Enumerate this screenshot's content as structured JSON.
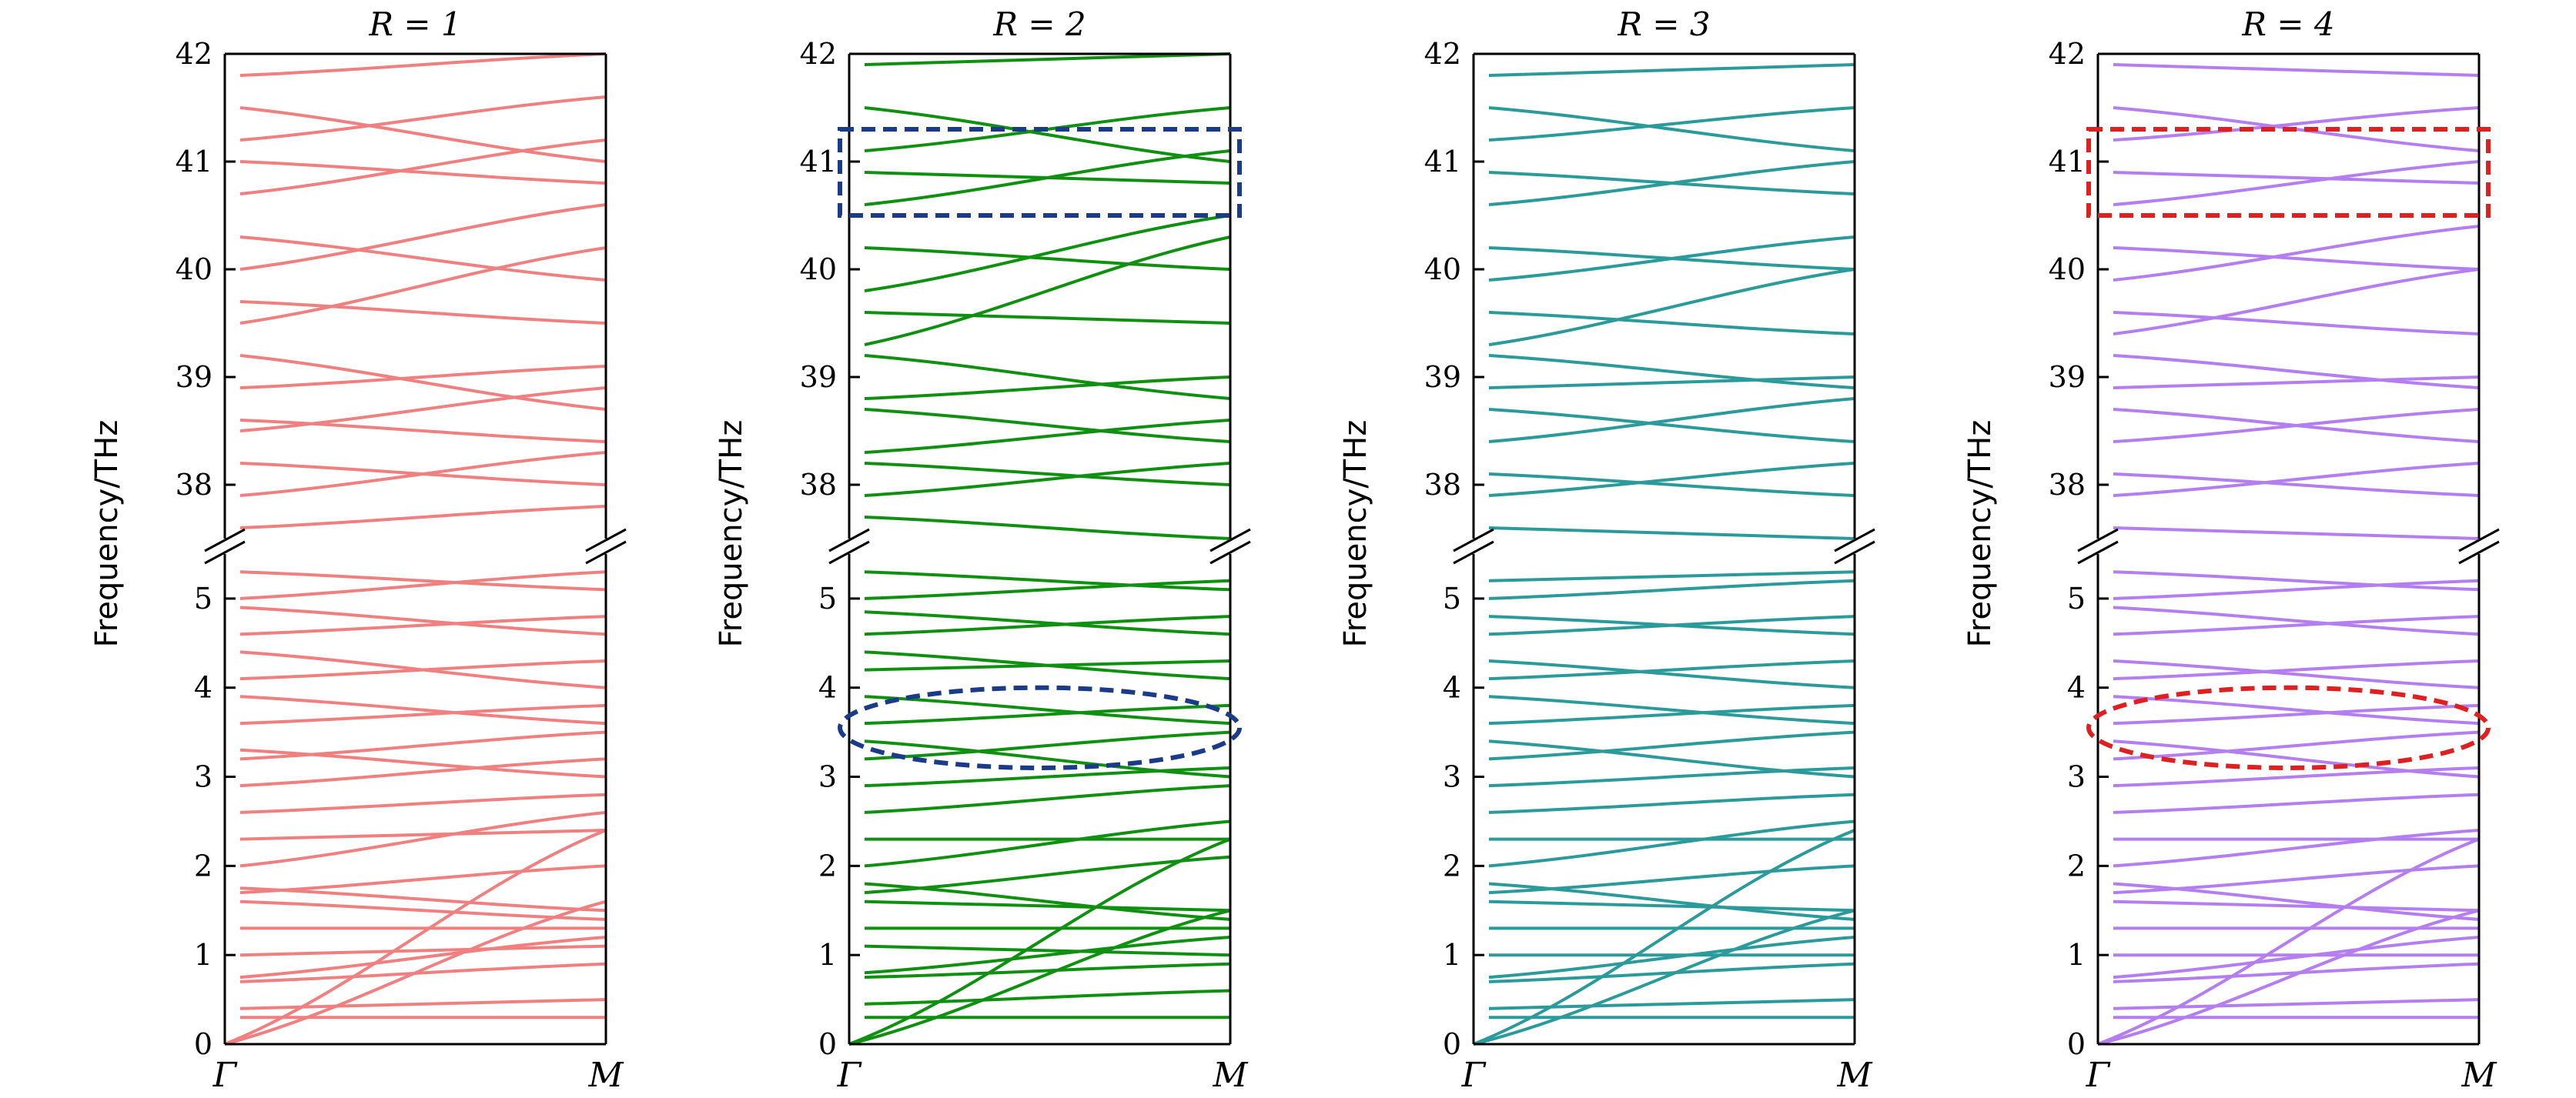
{
  "chart_data": [
    {
      "type": "line",
      "title": "R = 1",
      "ylabel": "Frequency/THz",
      "xticks": [
        "Γ",
        "M"
      ],
      "y_axis": "broken",
      "lower_range": [
        0,
        5.5
      ],
      "upper_range": [
        37.5,
        42
      ],
      "lower_ticks": [
        0,
        1,
        2,
        3,
        4,
        5
      ],
      "upper_ticks": [
        38,
        39,
        40,
        41,
        42
      ],
      "color": "#f08080",
      "series": [
        {
          "values": [
            0.0,
            1.6
          ]
        },
        {
          "values": [
            0.0,
            2.4
          ]
        },
        {
          "values": [
            0.3,
            0.3
          ]
        },
        {
          "values": [
            0.4,
            0.5
          ]
        },
        {
          "values": [
            0.7,
            0.9
          ]
        },
        {
          "values": [
            0.75,
            1.2
          ]
        },
        {
          "values": [
            1.0,
            1.1
          ]
        },
        {
          "values": [
            1.3,
            1.3
          ]
        },
        {
          "values": [
            1.6,
            1.4
          ]
        },
        {
          "values": [
            1.7,
            2.0
          ]
        },
        {
          "values": [
            1.75,
            1.5
          ]
        },
        {
          "values": [
            2.0,
            2.6
          ]
        },
        {
          "values": [
            2.3,
            2.4
          ]
        },
        {
          "values": [
            2.6,
            2.8
          ]
        },
        {
          "values": [
            2.9,
            3.2
          ]
        },
        {
          "values": [
            3.2,
            3.5
          ]
        },
        {
          "values": [
            3.3,
            3.0
          ]
        },
        {
          "values": [
            3.6,
            3.8
          ]
        },
        {
          "values": [
            3.9,
            3.6
          ]
        },
        {
          "values": [
            4.1,
            4.3
          ]
        },
        {
          "values": [
            4.4,
            4.0
          ]
        },
        {
          "values": [
            4.6,
            4.8
          ]
        },
        {
          "values": [
            4.9,
            4.6
          ]
        },
        {
          "values": [
            5.0,
            5.3
          ]
        },
        {
          "values": [
            5.3,
            5.1
          ]
        },
        {
          "values": [
            37.6,
            37.8
          ]
        },
        {
          "values": [
            37.9,
            38.3
          ]
        },
        {
          "values": [
            38.2,
            38.0
          ]
        },
        {
          "values": [
            38.5,
            38.9
          ]
        },
        {
          "values": [
            38.6,
            38.4
          ]
        },
        {
          "values": [
            38.9,
            39.1
          ]
        },
        {
          "values": [
            39.2,
            38.7
          ]
        },
        {
          "values": [
            39.5,
            40.2
          ]
        },
        {
          "values": [
            39.7,
            39.5
          ]
        },
        {
          "values": [
            40.0,
            40.6
          ]
        },
        {
          "values": [
            40.3,
            39.9
          ]
        },
        {
          "values": [
            40.7,
            41.2
          ]
        },
        {
          "values": [
            41.0,
            40.8
          ]
        },
        {
          "values": [
            41.2,
            41.6
          ]
        },
        {
          "values": [
            41.5,
            41.0
          ]
        },
        {
          "values": [
            41.8,
            42.0
          ]
        }
      ]
    },
    {
      "type": "line",
      "title": "R = 2",
      "ylabel": "Frequency/THz",
      "xticks": [
        "Γ",
        "M"
      ],
      "y_axis": "broken",
      "lower_range": [
        0,
        5.5
      ],
      "upper_range": [
        37.5,
        42
      ],
      "lower_ticks": [
        0,
        1,
        2,
        3,
        4,
        5
      ],
      "upper_ticks": [
        38,
        39,
        40,
        41,
        42
      ],
      "color": "#109010",
      "series": [
        {
          "values": [
            0.0,
            1.5
          ]
        },
        {
          "values": [
            0.0,
            2.3
          ]
        },
        {
          "values": [
            0.3,
            0.3
          ]
        },
        {
          "values": [
            0.45,
            0.6
          ]
        },
        {
          "values": [
            0.75,
            0.9
          ]
        },
        {
          "values": [
            0.8,
            1.2
          ]
        },
        {
          "values": [
            1.1,
            1.0
          ]
        },
        {
          "values": [
            1.3,
            1.3
          ]
        },
        {
          "values": [
            1.6,
            1.5
          ]
        },
        {
          "values": [
            1.7,
            2.1
          ]
        },
        {
          "values": [
            1.8,
            1.4
          ]
        },
        {
          "values": [
            2.0,
            2.5
          ]
        },
        {
          "values": [
            2.3,
            2.3
          ]
        },
        {
          "values": [
            2.6,
            2.9
          ]
        },
        {
          "values": [
            2.9,
            3.1
          ]
        },
        {
          "values": [
            3.2,
            3.5
          ]
        },
        {
          "values": [
            3.4,
            3.0
          ]
        },
        {
          "values": [
            3.6,
            3.8
          ]
        },
        {
          "values": [
            3.9,
            3.6
          ]
        },
        {
          "values": [
            4.2,
            4.3
          ]
        },
        {
          "values": [
            4.4,
            4.1
          ]
        },
        {
          "values": [
            4.6,
            4.8
          ]
        },
        {
          "values": [
            4.85,
            4.6
          ]
        },
        {
          "values": [
            5.0,
            5.2
          ]
        },
        {
          "values": [
            5.3,
            5.1
          ]
        },
        {
          "values": [
            37.7,
            37.5
          ]
        },
        {
          "values": [
            37.9,
            38.2
          ]
        },
        {
          "values": [
            38.2,
            38.0
          ]
        },
        {
          "values": [
            38.3,
            38.6
          ]
        },
        {
          "values": [
            38.7,
            38.4
          ]
        },
        {
          "values": [
            38.8,
            39.0
          ]
        },
        {
          "values": [
            39.2,
            38.8
          ]
        },
        {
          "values": [
            39.3,
            40.3
          ]
        },
        {
          "values": [
            39.6,
            39.5
          ]
        },
        {
          "values": [
            39.8,
            40.5
          ]
        },
        {
          "values": [
            40.2,
            40.0
          ]
        },
        {
          "values": [
            40.6,
            41.1
          ]
        },
        {
          "values": [
            40.9,
            40.8
          ]
        },
        {
          "values": [
            41.1,
            41.5
          ]
        },
        {
          "values": [
            41.5,
            41.0
          ]
        },
        {
          "values": [
            41.9,
            42.0
          ]
        }
      ],
      "annotations": [
        "dashed rectangle near 41 THz",
        "dashed ellipse near 3.5 THz"
      ],
      "annotation_color": "#1a3a8a"
    },
    {
      "type": "line",
      "title": "R = 3",
      "ylabel": "Frequency/THz",
      "xticks": [
        "Γ",
        "M"
      ],
      "y_axis": "broken",
      "lower_range": [
        0,
        5.5
      ],
      "upper_range": [
        37.5,
        42
      ],
      "lower_ticks": [
        0,
        1,
        2,
        3,
        4,
        5
      ],
      "upper_ticks": [
        38,
        39,
        40,
        41,
        42
      ],
      "color": "#2a9a9a",
      "series": [
        {
          "values": [
            0.0,
            1.5
          ]
        },
        {
          "values": [
            0.0,
            2.4
          ]
        },
        {
          "values": [
            0.3,
            0.3
          ]
        },
        {
          "values": [
            0.4,
            0.5
          ]
        },
        {
          "values": [
            0.7,
            0.9
          ]
        },
        {
          "values": [
            0.75,
            1.2
          ]
        },
        {
          "values": [
            1.0,
            1.0
          ]
        },
        {
          "values": [
            1.3,
            1.3
          ]
        },
        {
          "values": [
            1.6,
            1.5
          ]
        },
        {
          "values": [
            1.7,
            2.0
          ]
        },
        {
          "values": [
            1.8,
            1.4
          ]
        },
        {
          "values": [
            2.0,
            2.5
          ]
        },
        {
          "values": [
            2.3,
            2.3
          ]
        },
        {
          "values": [
            2.6,
            2.8
          ]
        },
        {
          "values": [
            2.9,
            3.1
          ]
        },
        {
          "values": [
            3.2,
            3.5
          ]
        },
        {
          "values": [
            3.4,
            3.0
          ]
        },
        {
          "values": [
            3.6,
            3.8
          ]
        },
        {
          "values": [
            3.9,
            3.6
          ]
        },
        {
          "values": [
            4.1,
            4.3
          ]
        },
        {
          "values": [
            4.3,
            4.0
          ]
        },
        {
          "values": [
            4.6,
            4.8
          ]
        },
        {
          "values": [
            4.8,
            4.6
          ]
        },
        {
          "values": [
            5.0,
            5.2
          ]
        },
        {
          "values": [
            5.2,
            5.3
          ]
        },
        {
          "values": [
            37.6,
            37.5
          ]
        },
        {
          "values": [
            37.9,
            38.2
          ]
        },
        {
          "values": [
            38.1,
            37.9
          ]
        },
        {
          "values": [
            38.4,
            38.8
          ]
        },
        {
          "values": [
            38.7,
            38.4
          ]
        },
        {
          "values": [
            38.9,
            39.0
          ]
        },
        {
          "values": [
            39.2,
            38.9
          ]
        },
        {
          "values": [
            39.3,
            40.0
          ]
        },
        {
          "values": [
            39.6,
            39.4
          ]
        },
        {
          "values": [
            39.9,
            40.3
          ]
        },
        {
          "values": [
            40.2,
            40.0
          ]
        },
        {
          "values": [
            40.6,
            41.0
          ]
        },
        {
          "values": [
            40.9,
            40.7
          ]
        },
        {
          "values": [
            41.2,
            41.5
          ]
        },
        {
          "values": [
            41.5,
            41.1
          ]
        },
        {
          "values": [
            41.8,
            41.9
          ]
        }
      ]
    },
    {
      "type": "line",
      "title": "R = 4",
      "ylabel": "Frequency/THz",
      "xticks": [
        "Γ",
        "M"
      ],
      "y_axis": "broken",
      "lower_range": [
        0,
        5.5
      ],
      "upper_range": [
        37.5,
        42
      ],
      "lower_ticks": [
        0,
        1,
        2,
        3,
        4,
        5
      ],
      "upper_ticks": [
        38,
        39,
        40,
        41,
        42
      ],
      "color": "#b57ef0",
      "series": [
        {
          "values": [
            0.0,
            1.5
          ]
        },
        {
          "values": [
            0.0,
            2.3
          ]
        },
        {
          "values": [
            0.3,
            0.3
          ]
        },
        {
          "values": [
            0.4,
            0.5
          ]
        },
        {
          "values": [
            0.7,
            0.9
          ]
        },
        {
          "values": [
            0.75,
            1.2
          ]
        },
        {
          "values": [
            1.0,
            1.0
          ]
        },
        {
          "values": [
            1.3,
            1.3
          ]
        },
        {
          "values": [
            1.6,
            1.5
          ]
        },
        {
          "values": [
            1.7,
            2.0
          ]
        },
        {
          "values": [
            1.8,
            1.4
          ]
        },
        {
          "values": [
            2.0,
            2.4
          ]
        },
        {
          "values": [
            2.3,
            2.3
          ]
        },
        {
          "values": [
            2.6,
            2.8
          ]
        },
        {
          "values": [
            2.9,
            3.1
          ]
        },
        {
          "values": [
            3.2,
            3.5
          ]
        },
        {
          "values": [
            3.4,
            3.0
          ]
        },
        {
          "values": [
            3.6,
            3.8
          ]
        },
        {
          "values": [
            3.9,
            3.6
          ]
        },
        {
          "values": [
            4.1,
            4.3
          ]
        },
        {
          "values": [
            4.3,
            4.0
          ]
        },
        {
          "values": [
            4.6,
            4.8
          ]
        },
        {
          "values": [
            4.9,
            4.6
          ]
        },
        {
          "values": [
            5.0,
            5.2
          ]
        },
        {
          "values": [
            5.3,
            5.1
          ]
        },
        {
          "values": [
            37.6,
            37.5
          ]
        },
        {
          "values": [
            37.9,
            38.2
          ]
        },
        {
          "values": [
            38.1,
            37.9
          ]
        },
        {
          "values": [
            38.4,
            38.7
          ]
        },
        {
          "values": [
            38.7,
            38.4
          ]
        },
        {
          "values": [
            38.9,
            39.0
          ]
        },
        {
          "values": [
            39.2,
            38.9
          ]
        },
        {
          "values": [
            39.4,
            40.0
          ]
        },
        {
          "values": [
            39.6,
            39.4
          ]
        },
        {
          "values": [
            39.9,
            40.4
          ]
        },
        {
          "values": [
            40.2,
            40.0
          ]
        },
        {
          "values": [
            40.6,
            41.0
          ]
        },
        {
          "values": [
            40.9,
            40.8
          ]
        },
        {
          "values": [
            41.2,
            41.5
          ]
        },
        {
          "values": [
            41.5,
            41.1
          ]
        },
        {
          "values": [
            41.9,
            41.8
          ]
        }
      ],
      "annotations": [
        "dashed rectangle near 41 THz",
        "dashed ellipse near 3.5 THz"
      ],
      "annotation_color": "#e02020"
    }
  ]
}
